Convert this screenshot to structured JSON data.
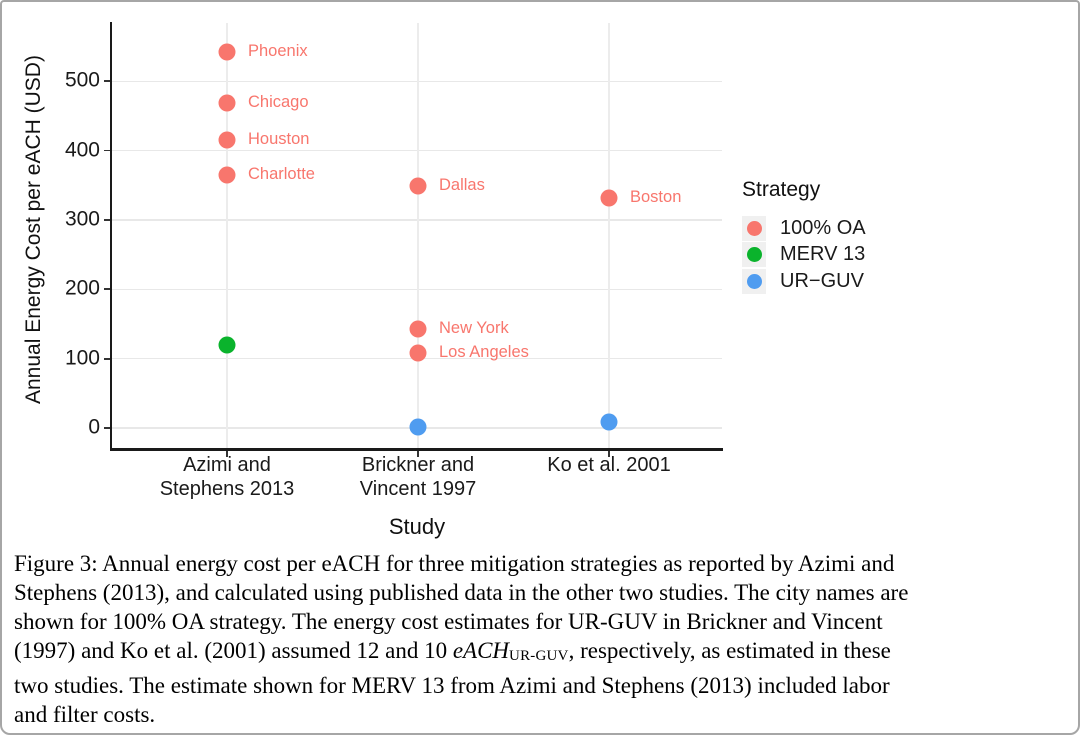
{
  "chart_data": {
    "type": "scatter",
    "title": "",
    "xlabel": "Study",
    "ylabel": "Annual Energy Cost per eACH (USD)",
    "categories": [
      "Azimi and\nStephens 2013",
      "Brickner and\nVincent 1997",
      "Ko et al. 2001"
    ],
    "yticks": [
      0,
      100,
      200,
      300,
      400,
      500
    ],
    "ylim": [
      -31,
      584
    ],
    "grid": true,
    "legend_position": "right",
    "series": [
      {
        "name": "100% OA",
        "color": "#F8766D",
        "points": [
          {
            "category_index": 0,
            "value": 542,
            "label": "Phoenix"
          },
          {
            "category_index": 0,
            "value": 469,
            "label": "Chicago"
          },
          {
            "category_index": 0,
            "value": 416,
            "label": "Houston"
          },
          {
            "category_index": 0,
            "value": 365,
            "label": "Charlotte"
          },
          {
            "category_index": 1,
            "value": 349,
            "label": "Dallas"
          },
          {
            "category_index": 1,
            "value": 143,
            "label": "New York"
          },
          {
            "category_index": 1,
            "value": 108,
            "label": "Los Angeles"
          },
          {
            "category_index": 2,
            "value": 332,
            "label": "Boston"
          }
        ]
      },
      {
        "name": "MERV 13",
        "color": "#0AB32C",
        "points": [
          {
            "category_index": 0,
            "value": 120,
            "label": ""
          }
        ]
      },
      {
        "name": "UR-GUV",
        "color": "#4F9CF0",
        "points": [
          {
            "category_index": 1,
            "value": 1,
            "label": ""
          },
          {
            "category_index": 2,
            "value": 8,
            "label": ""
          }
        ]
      }
    ]
  },
  "legend": {
    "title": "Strategy",
    "items": [
      {
        "label": "100% OA",
        "color": "#F8766D"
      },
      {
        "label": "MERV 13",
        "color": "#0AB32C"
      },
      {
        "label": "UR−GUV",
        "color": "#4F9CF0"
      }
    ]
  },
  "caption": {
    "lines": [
      [
        {
          "t": "Figure 3: Annual energy cost per eACH for three mitigation strategies as reported by Azimi and"
        }
      ],
      [
        {
          "t": "Stephens (2013), and calculated using published data in the other two studies. The city names are"
        }
      ],
      [
        {
          "t": "shown for 100% OA strategy. The energy cost estimates for UR-GUV in Brickner and Vincent"
        }
      ],
      [
        {
          "t": "(1997) and Ko et al. (2001) assumed 12 and 10 "
        },
        {
          "t": "eACH",
          "s": "i"
        },
        {
          "t": "UR-GUV",
          "s": "sc"
        },
        {
          "t": ", respectively, as estimated in these"
        }
      ],
      [
        {
          "t": "two studies. The estimate shown for MERV 13 from Azimi and Stephens (2013) included labor"
        }
      ],
      [
        {
          "t": "and filter costs."
        }
      ]
    ]
  }
}
